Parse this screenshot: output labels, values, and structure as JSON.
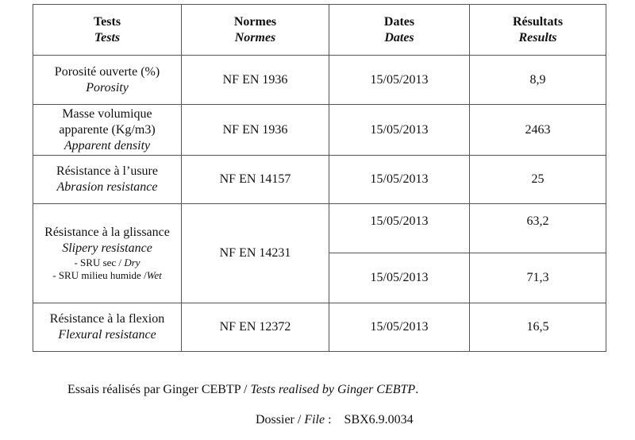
{
  "headers": [
    {
      "fr": "Tests",
      "en": "Tests"
    },
    {
      "fr": "Normes",
      "en": "Normes"
    },
    {
      "fr": "Dates",
      "en": "Dates"
    },
    {
      "fr": "Résultats",
      "en": "Results"
    }
  ],
  "rows": [
    {
      "test_fr": "Porosité ouverte (%)",
      "test_en": "Porosity",
      "norm": "NF EN 1936",
      "date": "15/05/2013",
      "result": "8,9"
    },
    {
      "test_fr1": "Masse volumique",
      "test_fr2": "apparente (Kg/m3)",
      "test_en": "Apparent density",
      "norm": "NF EN 1936",
      "date": "15/05/2013",
      "result": "2463"
    },
    {
      "test_fr": "Résistance à l’usure",
      "test_en": "Abrasion resistance",
      "norm": "NF EN 14157",
      "date": "15/05/2013",
      "result": "25"
    },
    {
      "test_fr": "Résistance à la glissance",
      "test_en": "Slipery resistance",
      "sub1_fr": "- SRU sec / ",
      "sub1_en": "Dry",
      "sub2_fr": "- SRU milieu humide /",
      "sub2_en": "Wet",
      "norm": "NF EN 14231",
      "date1": "15/05/2013",
      "result1": "63,2",
      "date2": "15/05/2013",
      "result2": "71,3"
    },
    {
      "test_fr": "Résistance à la flexion",
      "test_en": "Flexural resistance",
      "norm": "NF EN 12372",
      "date": "15/05/2013",
      "result": "16,5"
    }
  ],
  "footer": {
    "note_fr": "Essais réalisés par Ginger CEBTP / ",
    "note_en": "Tests realised by Ginger CEBTP",
    "note_end": ".",
    "file_fr": "Dossier / ",
    "file_en": "File",
    "file_sep": " :    ",
    "file_value": "SBX6.9.0034"
  }
}
